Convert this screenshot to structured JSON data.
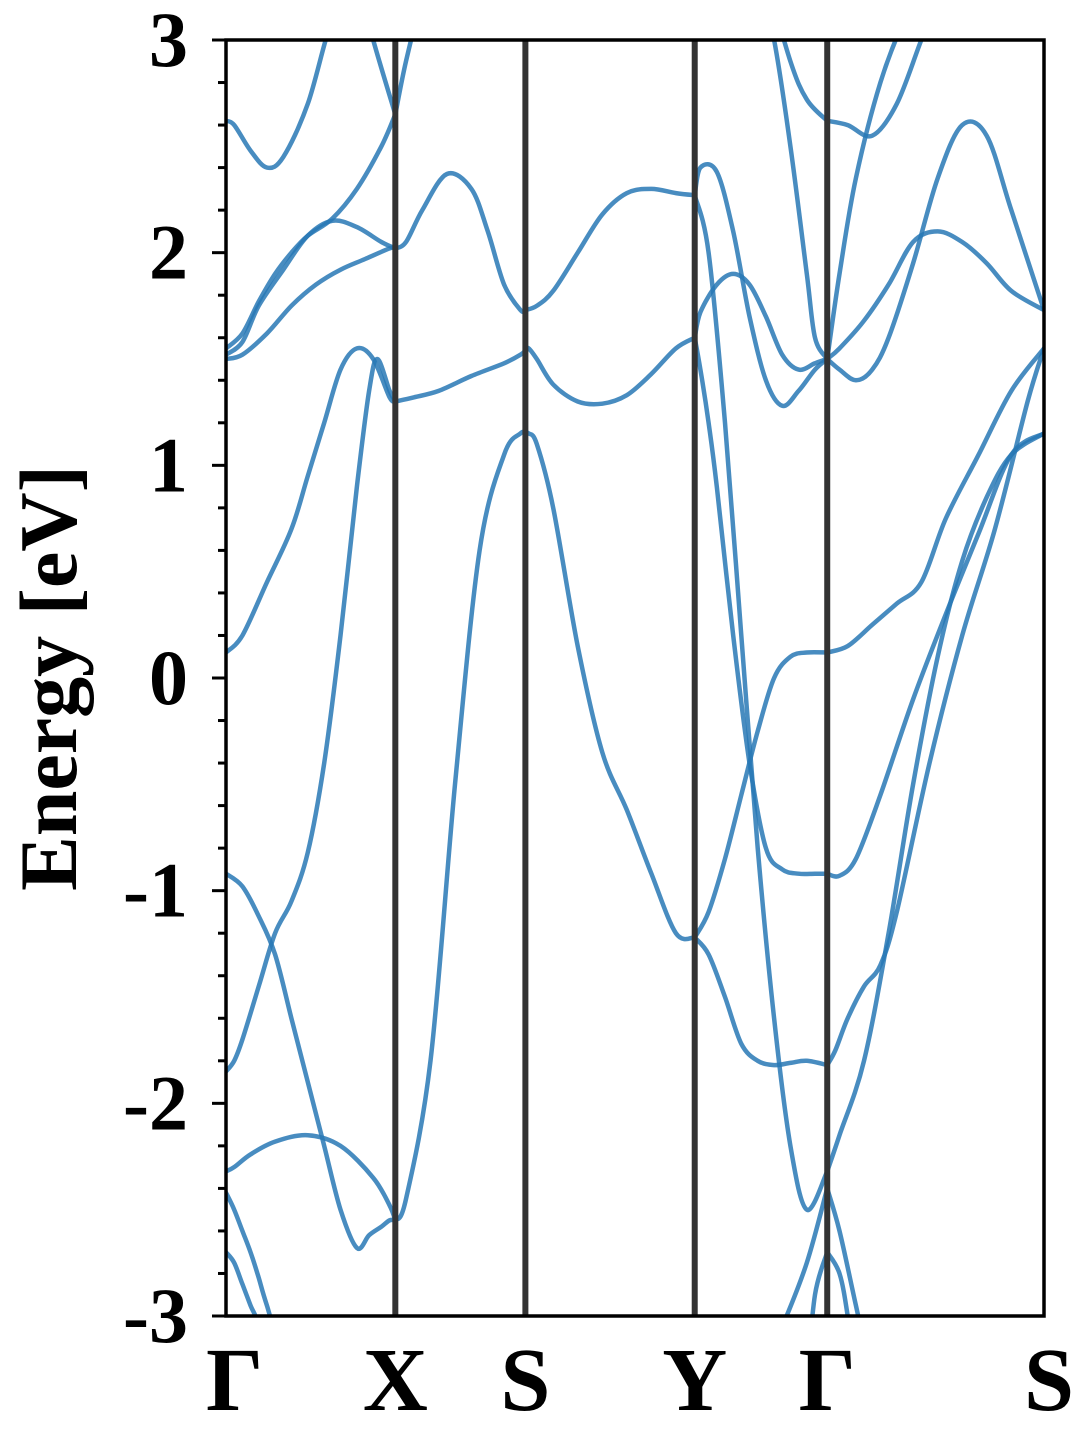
{
  "chart_data": {
    "type": "line",
    "title": "",
    "xlabel": "",
    "ylabel": "Energy [eV]",
    "ylim": [
      -3,
      3
    ],
    "y_ticks": [
      "-3",
      "-2",
      "-1",
      "0",
      "1",
      "2",
      "3"
    ],
    "y_minor_step": 0.2,
    "x_ticks": [
      {
        "label": "Γ",
        "x": 0.0
      },
      {
        "label": "X",
        "x": 0.207
      },
      {
        "label": "S",
        "x": 0.366
      },
      {
        "label": "Y",
        "x": 0.573
      },
      {
        "label": "Γ",
        "x": 0.735
      },
      {
        "label": "S",
        "x": 1.0
      }
    ],
    "xlim": [
      0,
      1
    ],
    "grid": false,
    "legend": "none",
    "color": "#2878b5",
    "series": [
      {
        "x": [
          0,
          0.01,
          0.03,
          0.06,
          0.1,
          0.14,
          0.18,
          0.2,
          0.207
        ],
        "values": [
          -2.32,
          -2.3,
          -2.24,
          -2.18,
          -2.15,
          -2.2,
          -2.35,
          -2.48,
          -2.55
        ]
      },
      {
        "x": [
          0.207,
          0.22,
          0.25,
          0.28,
          0.31,
          0.34,
          0.36,
          0.366
        ],
        "values": [
          -2.55,
          -2.45,
          -1.8,
          -0.5,
          0.6,
          1.05,
          1.15,
          1.15
        ]
      },
      {
        "x": [
          0.366,
          0.37,
          0.38,
          0.4,
          0.43,
          0.46,
          0.49,
          0.52,
          0.55,
          0.573
        ],
        "values": [
          1.15,
          1.15,
          1.1,
          0.8,
          0.15,
          -0.35,
          -0.62,
          -0.92,
          -1.2,
          -1.22
        ]
      },
      {
        "x": [
          0,
          0.01,
          0.02,
          0.03,
          0.04,
          0.05,
          0.08,
          0.12,
          0.16,
          0.18,
          0.2,
          0.207
        ],
        "values": [
          -2.42,
          -2.5,
          -2.6,
          -2.7,
          -2.82,
          -2.95,
          -3.3,
          -3.3,
          -3.3,
          -3.3,
          -3.3,
          -3.3
        ]
      },
      {
        "x": [
          0,
          0.01,
          0.02,
          0.03,
          0.04,
          0.05
        ],
        "values": [
          -2.7,
          -2.75,
          -2.85,
          -2.95,
          -3.05,
          -3.3
        ]
      },
      {
        "x": [
          0,
          0.01,
          0.02,
          0.04,
          0.06,
          0.08,
          0.1,
          0.12,
          0.14,
          0.16,
          0.175,
          0.185,
          0.2,
          0.207
        ],
        "values": [
          -1.85,
          -1.8,
          -1.7,
          -1.45,
          -1.2,
          -1.05,
          -0.82,
          -0.4,
          0.2,
          0.9,
          1.35,
          1.5,
          1.35,
          1.3
        ]
      },
      {
        "x": [
          0,
          0.02,
          0.04,
          0.06,
          0.08,
          0.1,
          0.12,
          0.14,
          0.16,
          0.175,
          0.19,
          0.2,
          0.207
        ],
        "values": [
          -0.92,
          -0.98,
          -1.12,
          -1.3,
          -1.6,
          -1.9,
          -2.2,
          -2.5,
          -2.68,
          -2.62,
          -2.58,
          -2.55,
          -2.55
        ]
      },
      {
        "x": [
          0,
          0.02,
          0.05,
          0.08,
          0.1,
          0.12,
          0.14,
          0.16,
          0.18,
          0.2,
          0.207
        ],
        "values": [
          0.12,
          0.2,
          0.45,
          0.7,
          0.95,
          1.2,
          1.45,
          1.55,
          1.5,
          1.32,
          1.3
        ]
      },
      {
        "x": [
          0.207,
          0.23,
          0.26,
          0.3,
          0.34,
          0.36,
          0.366
        ],
        "values": [
          1.3,
          1.32,
          1.35,
          1.42,
          1.48,
          1.52,
          1.54
        ]
      },
      {
        "x": [
          0.366,
          0.37,
          0.38,
          0.4,
          0.43,
          0.46,
          0.49,
          0.52,
          0.55,
          0.573
        ],
        "values": [
          1.54,
          1.55,
          1.5,
          1.38,
          1.3,
          1.29,
          1.33,
          1.43,
          1.55,
          1.6
        ]
      },
      {
        "x": [
          0,
          0.02,
          0.04,
          0.07,
          0.1,
          0.13,
          0.16,
          0.19,
          0.207
        ],
        "values": [
          1.52,
          1.58,
          1.75,
          1.92,
          2.08,
          2.15,
          2.12,
          2.05,
          2.02
        ]
      },
      {
        "x": [
          0.207,
          0.22,
          0.24,
          0.27,
          0.3,
          0.32,
          0.34,
          0.36,
          0.366
        ],
        "values": [
          2.02,
          2.05,
          2.2,
          2.37,
          2.3,
          2.1,
          1.85,
          1.73,
          1.73
        ]
      },
      {
        "x": [
          0.366,
          0.38,
          0.4,
          0.43,
          0.46,
          0.49,
          0.52,
          0.55,
          0.573
        ],
        "values": [
          1.73,
          1.75,
          1.82,
          2.0,
          2.18,
          2.28,
          2.3,
          2.28,
          2.27
        ]
      },
      {
        "x": [
          0,
          0.02,
          0.05,
          0.08,
          0.11,
          0.14,
          0.17,
          0.2,
          0.207
        ],
        "values": [
          1.5,
          1.52,
          1.62,
          1.75,
          1.85,
          1.92,
          1.97,
          2.02,
          2.02
        ]
      },
      {
        "x": [
          0,
          0.02,
          0.04,
          0.06,
          0.08,
          0.1,
          0.13,
          0.16,
          0.19,
          0.207
        ],
        "values": [
          1.55,
          1.62,
          1.77,
          1.9,
          2.0,
          2.08,
          2.16,
          2.3,
          2.5,
          2.65
        ]
      },
      {
        "x": [
          0.207,
          0.22,
          0.24,
          0.25
        ],
        "values": [
          2.65,
          2.9,
          3.2,
          3.3
        ]
      },
      {
        "x": [
          0,
          0.01,
          0.03,
          0.05,
          0.07,
          0.1,
          0.13,
          0.16,
          0.18,
          0.207
        ],
        "values": [
          2.62,
          2.6,
          2.48,
          2.4,
          2.45,
          2.7,
          3.1,
          3.3,
          3.0,
          2.65
        ]
      },
      {
        "x": [
          0.573,
          0.58,
          0.59,
          0.6,
          0.62,
          0.64,
          0.66,
          0.68,
          0.7,
          0.72,
          0.735
        ],
        "values": [
          1.6,
          1.45,
          1.2,
          0.9,
          0.2,
          -0.4,
          -0.8,
          -0.9,
          -0.92,
          -0.92,
          -0.92
        ]
      },
      {
        "x": [
          0.735,
          0.75,
          0.77,
          0.8,
          0.84,
          0.88,
          0.92,
          0.96,
          1.0
        ],
        "values": [
          -0.92,
          -0.93,
          -0.85,
          -0.55,
          -0.1,
          0.3,
          0.68,
          1.05,
          1.15
        ]
      },
      {
        "x": [
          0.573,
          0.59,
          0.61,
          0.63,
          0.65,
          0.67,
          0.69,
          0.71,
          0.735
        ],
        "values": [
          -1.22,
          -1.1,
          -0.85,
          -0.55,
          -0.25,
          0.0,
          0.1,
          0.12,
          0.12
        ]
      },
      {
        "x": [
          0.735,
          0.76,
          0.79,
          0.82,
          0.85,
          0.88,
          0.92,
          0.96,
          1.0
        ],
        "values": [
          0.12,
          0.15,
          0.25,
          0.35,
          0.45,
          0.75,
          1.05,
          1.35,
          1.55
        ]
      },
      {
        "x": [
          0.573,
          0.59,
          0.61,
          0.63,
          0.65,
          0.67,
          0.69,
          0.71,
          0.735
        ],
        "values": [
          -1.22,
          -1.3,
          -1.5,
          -1.72,
          -1.8,
          -1.82,
          -1.81,
          -1.8,
          -1.82
        ]
      },
      {
        "x": [
          0.735,
          0.745,
          0.76,
          0.78,
          0.8,
          0.82,
          0.86,
          0.9,
          0.94,
          0.98,
          1.0
        ],
        "values": [
          -1.82,
          -1.75,
          -1.6,
          -1.45,
          -1.35,
          -1.1,
          -0.4,
          0.2,
          0.7,
          1.3,
          1.55
        ]
      },
      {
        "x": [
          0.573,
          0.58,
          0.6,
          0.62,
          0.64,
          0.66,
          0.68,
          0.7,
          0.72,
          0.735
        ],
        "values": [
          1.6,
          1.72,
          1.85,
          1.9,
          1.85,
          1.7,
          1.52,
          1.45,
          1.48,
          1.5
        ]
      },
      {
        "x": [
          0.735,
          0.75,
          0.78,
          0.81,
          0.84,
          0.87,
          0.9,
          0.93,
          0.96,
          1.0
        ],
        "values": [
          1.5,
          1.55,
          1.68,
          1.85,
          2.05,
          2.1,
          2.05,
          1.95,
          1.82,
          1.73
        ]
      },
      {
        "x": [
          0.573,
          0.58,
          0.6,
          0.62,
          0.64,
          0.66,
          0.68,
          0.7,
          0.72,
          0.735
        ],
        "values": [
          2.27,
          2.4,
          2.38,
          2.1,
          1.7,
          1.4,
          1.28,
          1.35,
          1.45,
          1.5
        ]
      },
      {
        "x": [
          0.735,
          0.75,
          0.77,
          0.79,
          0.81,
          0.84,
          0.87,
          0.9,
          0.93,
          0.96,
          1.0
        ],
        "values": [
          1.5,
          1.45,
          1.4,
          1.45,
          1.6,
          1.95,
          2.35,
          2.6,
          2.55,
          2.2,
          1.73
        ]
      },
      {
        "x": [
          0.573,
          0.59,
          0.61,
          0.63,
          0.65,
          0.67,
          0.69,
          0.71,
          0.735
        ],
        "values": [
          2.27,
          2.0,
          1.2,
          0.2,
          -0.8,
          -1.6,
          -2.2,
          -2.5,
          -2.32
        ]
      },
      {
        "x": [
          0.735,
          0.75,
          0.78,
          0.81,
          0.84,
          0.87,
          0.9,
          0.93,
          0.96,
          1.0
        ],
        "values": [
          -2.32,
          -2.15,
          -1.8,
          -1.2,
          -0.5,
          0.1,
          0.55,
          0.85,
          1.05,
          1.15
        ]
      },
      {
        "x": [
          0.65,
          0.67,
          0.69,
          0.71,
          0.72,
          0.735
        ],
        "values": [
          3.3,
          3.0,
          2.5,
          1.9,
          1.6,
          1.5
        ]
      },
      {
        "x": [
          0.735,
          0.75,
          0.77,
          0.8,
          0.83,
          0.86,
          0.88
        ],
        "values": [
          1.5,
          1.9,
          2.35,
          2.8,
          3.1,
          3.3,
          3.3
        ]
      },
      {
        "x": [
          0.66,
          0.69,
          0.71,
          0.735
        ],
        "values": [
          3.3,
          2.9,
          2.72,
          2.62
        ]
      },
      {
        "x": [
          0.735,
          0.76,
          0.79,
          0.82,
          0.85,
          0.88
        ],
        "values": [
          2.62,
          2.6,
          2.55,
          2.7,
          3.0,
          3.3
        ]
      },
      {
        "x": [
          0.65,
          0.68,
          0.71,
          0.735
        ],
        "values": [
          -3.3,
          -3.05,
          -2.75,
          -2.4
        ]
      },
      {
        "x": [
          0.735,
          0.75,
          0.77,
          0.79
        ],
        "values": [
          -2.4,
          -2.6,
          -2.95,
          -3.3
        ]
      },
      {
        "x": [
          0.71,
          0.72,
          0.735
        ],
        "values": [
          -3.3,
          -2.9,
          -2.7
        ]
      },
      {
        "x": [
          0.735,
          0.75,
          0.76,
          0.77
        ],
        "values": [
          -2.7,
          -2.8,
          -3.0,
          -3.3
        ]
      }
    ]
  }
}
